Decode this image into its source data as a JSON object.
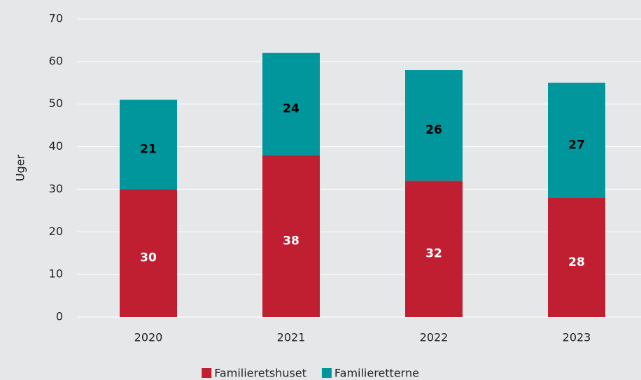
{
  "chart_data": {
    "type": "stacked_bar",
    "y_label": "Uger",
    "categories": [
      "2020",
      "2021",
      "2022",
      "2023"
    ],
    "series": [
      {
        "name": "Familieretshuset",
        "color": "#c01f32",
        "label_color": "#ffffff",
        "values": [
          30,
          38,
          32,
          28
        ]
      },
      {
        "name": "Familieretterne",
        "color": "#00969c",
        "label_color": "#000000",
        "values": [
          21,
          24,
          26,
          27
        ]
      }
    ],
    "ylim": [
      0,
      70
    ],
    "yticks": [
      0,
      10,
      20,
      30,
      40,
      50,
      60,
      70
    ],
    "grid": true,
    "legend": "bottom"
  }
}
